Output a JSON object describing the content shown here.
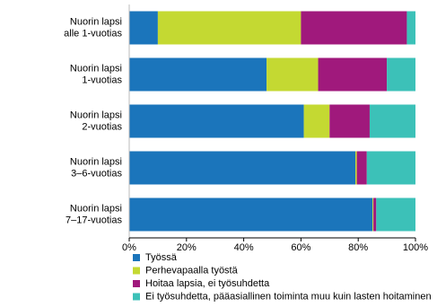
{
  "chart_data": {
    "type": "stacked-barh",
    "categories": [
      "Nuorin lapsi\nalle 1-vuotias",
      "Nuorin lapsi\n1-vuotias",
      "Nuorin lapsi\n2-vuotias",
      "Nuorin lapsi\n3–6-vuotias",
      "Nuorin lapsi\n7–17-vuotias"
    ],
    "series": [
      {
        "name": "Työssä",
        "color": "#1b75bb",
        "values": [
          10,
          48,
          61,
          79,
          85
        ]
      },
      {
        "name": "Perhevapaalla työstä",
        "color": "#c4d932",
        "values": [
          50,
          18,
          9,
          0.5,
          0.3
        ]
      },
      {
        "name": "Hoitaa lapsia, ei työsuhdetta",
        "color": "#a0197c",
        "values": [
          37,
          24,
          14,
          3.5,
          1
        ]
      },
      {
        "name": "Ei työsuhdetta, pääasiallinen toiminta muu kuin lasten hoitaminen",
        "color": "#3cc1b8",
        "values": [
          3,
          10,
          16,
          17,
          13.7
        ]
      }
    ],
    "xlim": [
      0,
      100
    ],
    "xticks": [
      {
        "value": 0,
        "label": "0%"
      },
      {
        "value": 20,
        "label": "20%"
      },
      {
        "value": 40,
        "label": "40%"
      },
      {
        "value": 60,
        "label": "60%"
      },
      {
        "value": 80,
        "label": "80%"
      },
      {
        "value": 100,
        "label": "100%"
      }
    ],
    "legend": "bottom-left"
  }
}
